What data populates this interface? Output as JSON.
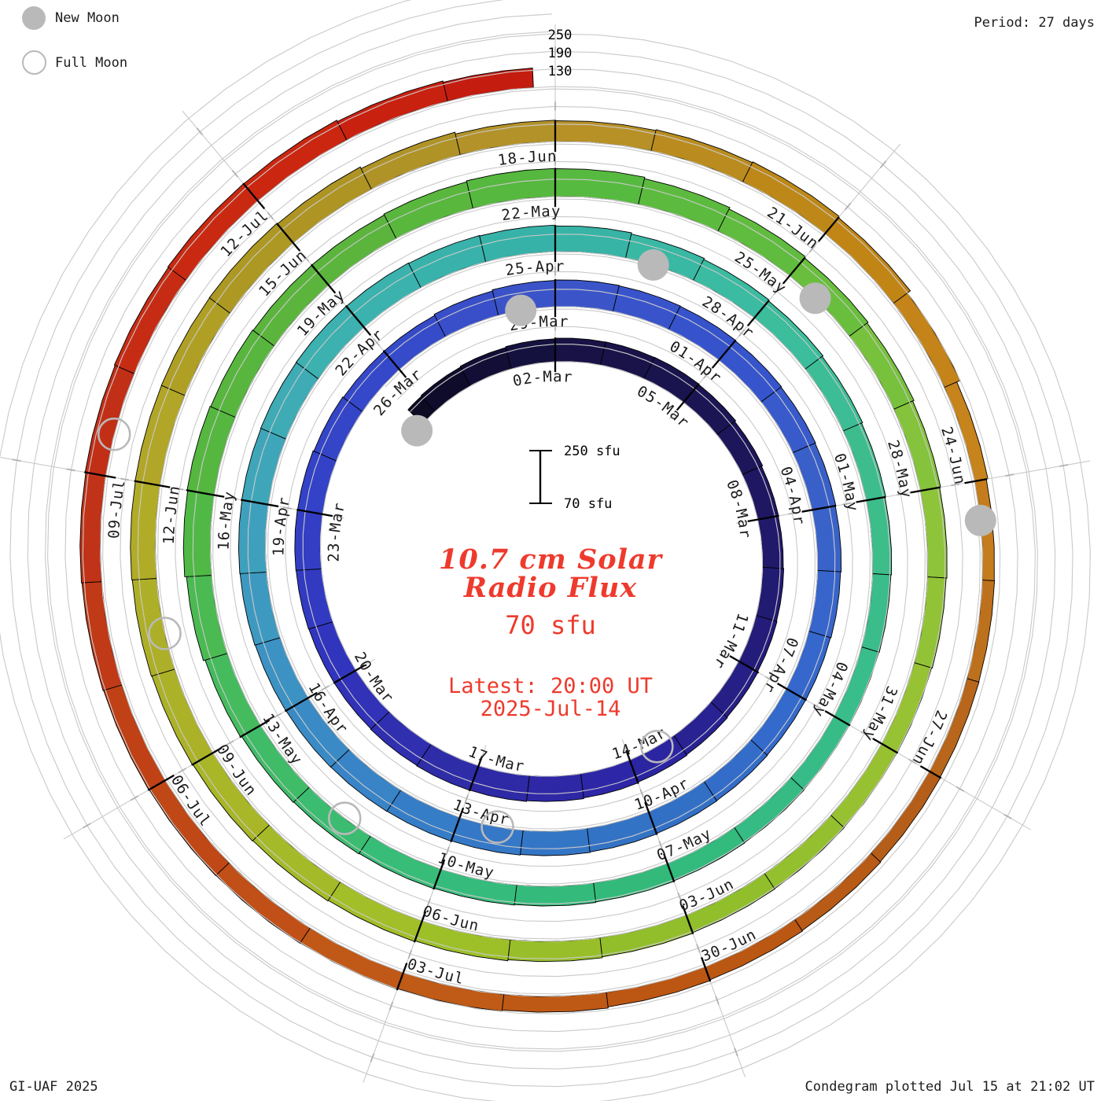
{
  "legend": {
    "new_moon_label": "New Moon",
    "full_moon_label": "Full Moon"
  },
  "header": {
    "period_label": "Period: 27 days"
  },
  "footer": {
    "credit": "GI-UAF 2025",
    "plotted": "Condegram plotted Jul 15 at 21:02 UT"
  },
  "radial_scale_labels": {
    "l250": "250",
    "l190": "190",
    "l130": "130"
  },
  "scale_bar": {
    "top_label": "250 sfu",
    "bottom_label": "70 sfu"
  },
  "center_text": {
    "title_line1": "10.7 cm Solar",
    "title_line2": "Radio Flux",
    "baseline_label": "70 sfu",
    "latest_line1": "Latest: 20:00 UT",
    "latest_line2": "2025-Jul-14"
  },
  "colors": {
    "accent_red": "#ee3a2d",
    "grid_gray": "#c9c9c9",
    "tick_gray": "#b0b0b0",
    "moon_gray": "#b9b9b9",
    "segment_outline": "#000000",
    "label_text": "#1b1b1b"
  },
  "chart_data": {
    "type": "spiral_condegram",
    "title": "10.7 cm Solar Radio Flux",
    "units": "sfu",
    "baseline_sfu": 70,
    "radial_levels_sfu": [
      70,
      130,
      190,
      250
    ],
    "period_days": 27,
    "start_day_offset": -3.4,
    "end_day_offset": 134.8,
    "epoch_label_date": "2025-03-02",
    "date_labels": [
      {
        "d": 0,
        "text": "02-Mar"
      },
      {
        "d": 3,
        "text": "05-Mar"
      },
      {
        "d": 6,
        "text": "08-Mar"
      },
      {
        "d": 9,
        "text": "11-Mar"
      },
      {
        "d": 12,
        "text": "14-Mar"
      },
      {
        "d": 15,
        "text": "17-Mar"
      },
      {
        "d": 18,
        "text": "20-Mar"
      },
      {
        "d": 21,
        "text": "23-Mar"
      },
      {
        "d": 24,
        "text": "26-Mar"
      },
      {
        "d": 27,
        "text": "29-Mar"
      },
      {
        "d": 30,
        "text": "01-Apr"
      },
      {
        "d": 33,
        "text": "04-Apr"
      },
      {
        "d": 36,
        "text": "07-Apr"
      },
      {
        "d": 39,
        "text": "10-Apr"
      },
      {
        "d": 42,
        "text": "13-Apr"
      },
      {
        "d": 45,
        "text": "16-Apr"
      },
      {
        "d": 48,
        "text": "19-Apr"
      },
      {
        "d": 51,
        "text": "22-Apr"
      },
      {
        "d": 54,
        "text": "25-Apr"
      },
      {
        "d": 57,
        "text": "28-Apr"
      },
      {
        "d": 60,
        "text": "01-May"
      },
      {
        "d": 63,
        "text": "04-May"
      },
      {
        "d": 66,
        "text": "07-May"
      },
      {
        "d": 69,
        "text": "10-May"
      },
      {
        "d": 72,
        "text": "13-May"
      },
      {
        "d": 75,
        "text": "16-May"
      },
      {
        "d": 78,
        "text": "19-May"
      },
      {
        "d": 81,
        "text": "22-May"
      },
      {
        "d": 84,
        "text": "25-May"
      },
      {
        "d": 87,
        "text": "28-May"
      },
      {
        "d": 90,
        "text": "31-May"
      },
      {
        "d": 93,
        "text": "03-Jun"
      },
      {
        "d": 96,
        "text": "06-Jun"
      },
      {
        "d": 99,
        "text": "09-Jun"
      },
      {
        "d": 102,
        "text": "12-Jun"
      },
      {
        "d": 105,
        "text": "15-Jun"
      },
      {
        "d": 108,
        "text": "18-Jun"
      },
      {
        "d": 111,
        "text": "21-Jun"
      },
      {
        "d": 114,
        "text": "24-Jun"
      },
      {
        "d": 117,
        "text": "27-Jun"
      },
      {
        "d": 120,
        "text": "30-Jun"
      },
      {
        "d": 123,
        "text": "03-Jul"
      },
      {
        "d": 126,
        "text": "06-Jul"
      },
      {
        "d": 129,
        "text": "09-Jul"
      },
      {
        "d": 132,
        "text": "12-Jul"
      }
    ],
    "flux_estimate": {
      "d": [
        -3.4,
        0,
        3,
        6,
        9,
        12,
        15,
        18,
        21,
        24,
        27,
        30,
        33,
        36,
        39,
        42,
        45,
        48,
        51,
        54,
        57,
        60,
        63,
        66,
        69,
        72,
        75,
        78,
        81,
        84,
        87,
        90,
        93,
        96,
        99,
        102,
        105,
        108,
        111,
        114,
        117,
        120,
        123,
        126,
        129,
        132,
        134.8
      ],
      "sfu": [
        140,
        150,
        152,
        140,
        145,
        152,
        160,
        155,
        158,
        150,
        162,
        158,
        152,
        146,
        150,
        156,
        158,
        162,
        165,
        160,
        148,
        136,
        130,
        134,
        140,
        146,
        165,
        158,
        168,
        152,
        138,
        130,
        134,
        144,
        150,
        156,
        158,
        140,
        148,
        110,
        113,
        118,
        130,
        134,
        140,
        148,
        135
      ]
    },
    "color_stops": {
      "d": [
        -3.4,
        0,
        3,
        6,
        9,
        12,
        15,
        18,
        21,
        24,
        27,
        30,
        33,
        36,
        39,
        42,
        45,
        48,
        51,
        54,
        57,
        60,
        63,
        66,
        69,
        72,
        75,
        78,
        81,
        84,
        87,
        90,
        93,
        96,
        99,
        102,
        105,
        108,
        111,
        114,
        117,
        120,
        123,
        126,
        129,
        132,
        134.8
      ],
      "hex": [
        "#0c0a22",
        "#171244",
        "#1b1450",
        "#201866",
        "#241d7e",
        "#2d26a8",
        "#2e2aa4",
        "#3133bb",
        "#3340c6",
        "#3549c9",
        "#3c55c8",
        "#3552cd",
        "#3a62c8",
        "#3468cd",
        "#3272c4",
        "#3579c8",
        "#3b8fc4",
        "#40a3bc",
        "#3cb2ae",
        "#36b2a7",
        "#3cbda0",
        "#3dbd8a",
        "#38bd8b",
        "#32b97a",
        "#36bd7c",
        "#42bb64",
        "#53b840",
        "#5cb43c",
        "#55b940",
        "#62bd3d",
        "#8cc43c",
        "#98c232",
        "#8fbe2b",
        "#a0c028",
        "#aab428",
        "#b2aa28",
        "#ab9422",
        "#b5922a",
        "#bf8614",
        "#c8821e",
        "#b4601a",
        "#bb5512",
        "#c05c18",
        "#c04416",
        "#c03018",
        "#cc2810",
        "#c41a10"
      ]
    },
    "moons": {
      "new_moon_dates": [
        "2025-02-27",
        "2025-03-29",
        "2025-04-27",
        "2025-05-26",
        "2025-06-25"
      ],
      "full_moon_dates": [
        "2025-03-14",
        "2025-04-13",
        "2025-05-12",
        "2025-06-11",
        "2025-07-10"
      ]
    }
  }
}
